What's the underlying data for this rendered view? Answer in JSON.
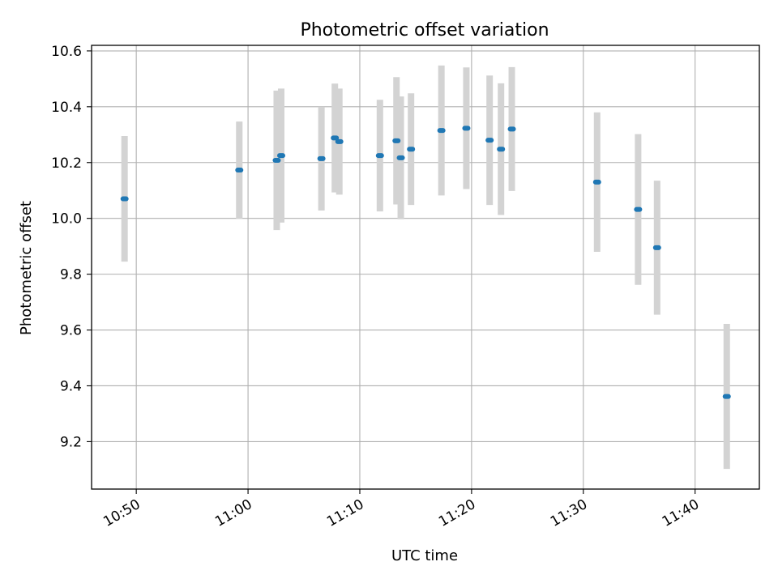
{
  "chart_data": {
    "type": "scatter",
    "title": "Photometric offset variation",
    "xlabel": "UTC time",
    "ylabel": "Photometric offset",
    "x_axis_type": "time",
    "x_ticks": [
      "10:50",
      "11:00",
      "11:10",
      "11:20",
      "11:30",
      "11:40"
    ],
    "y_ticks": [
      "9.2",
      "9.4",
      "9.6",
      "9.8",
      "10.0",
      "10.2",
      "10.4",
      "10.6"
    ],
    "xlim": [
      "10:46:00",
      "11:45:45"
    ],
    "ylim": [
      9.03,
      10.62
    ],
    "grid": true,
    "legend": "none",
    "colors": {
      "marker": "#1f77b4",
      "errorbar": "#d3d3d3",
      "grid": "#b0b0b0"
    },
    "series": [
      {
        "points": [
          {
            "x": "10:48:57",
            "y": 10.07,
            "yerr": 0.225
          },
          {
            "x": "10:59:13",
            "y": 10.173,
            "yerr": 0.174
          },
          {
            "x": "11:02:34",
            "y": 10.208,
            "yerr": 0.25
          },
          {
            "x": "11:02:58",
            "y": 10.225,
            "yerr": 0.24
          },
          {
            "x": "11:06:34",
            "y": 10.214,
            "yerr": 0.186
          },
          {
            "x": "11:07:46",
            "y": 10.288,
            "yerr": 0.195
          },
          {
            "x": "11:08:10",
            "y": 10.275,
            "yerr": 0.19
          },
          {
            "x": "11:11:48",
            "y": 10.225,
            "yerr": 0.2
          },
          {
            "x": "11:13:17",
            "y": 10.278,
            "yerr": 0.228
          },
          {
            "x": "11:13:40",
            "y": 10.217,
            "yerr": 0.22
          },
          {
            "x": "11:14:35",
            "y": 10.248,
            "yerr": 0.2
          },
          {
            "x": "11:17:18",
            "y": 10.315,
            "yerr": 0.233
          },
          {
            "x": "11:19:32",
            "y": 10.323,
            "yerr": 0.218
          },
          {
            "x": "11:21:37",
            "y": 10.28,
            "yerr": 0.232
          },
          {
            "x": "11:22:38",
            "y": 10.248,
            "yerr": 0.236
          },
          {
            "x": "11:23:36",
            "y": 10.32,
            "yerr": 0.222
          },
          {
            "x": "11:31:14",
            "y": 10.13,
            "yerr": 0.25
          },
          {
            "x": "11:34:54",
            "y": 10.032,
            "yerr": 0.27
          },
          {
            "x": "11:36:36",
            "y": 9.895,
            "yerr": 0.24
          },
          {
            "x": "11:42:50",
            "y": 9.362,
            "yerr": 0.26
          }
        ]
      }
    ]
  }
}
